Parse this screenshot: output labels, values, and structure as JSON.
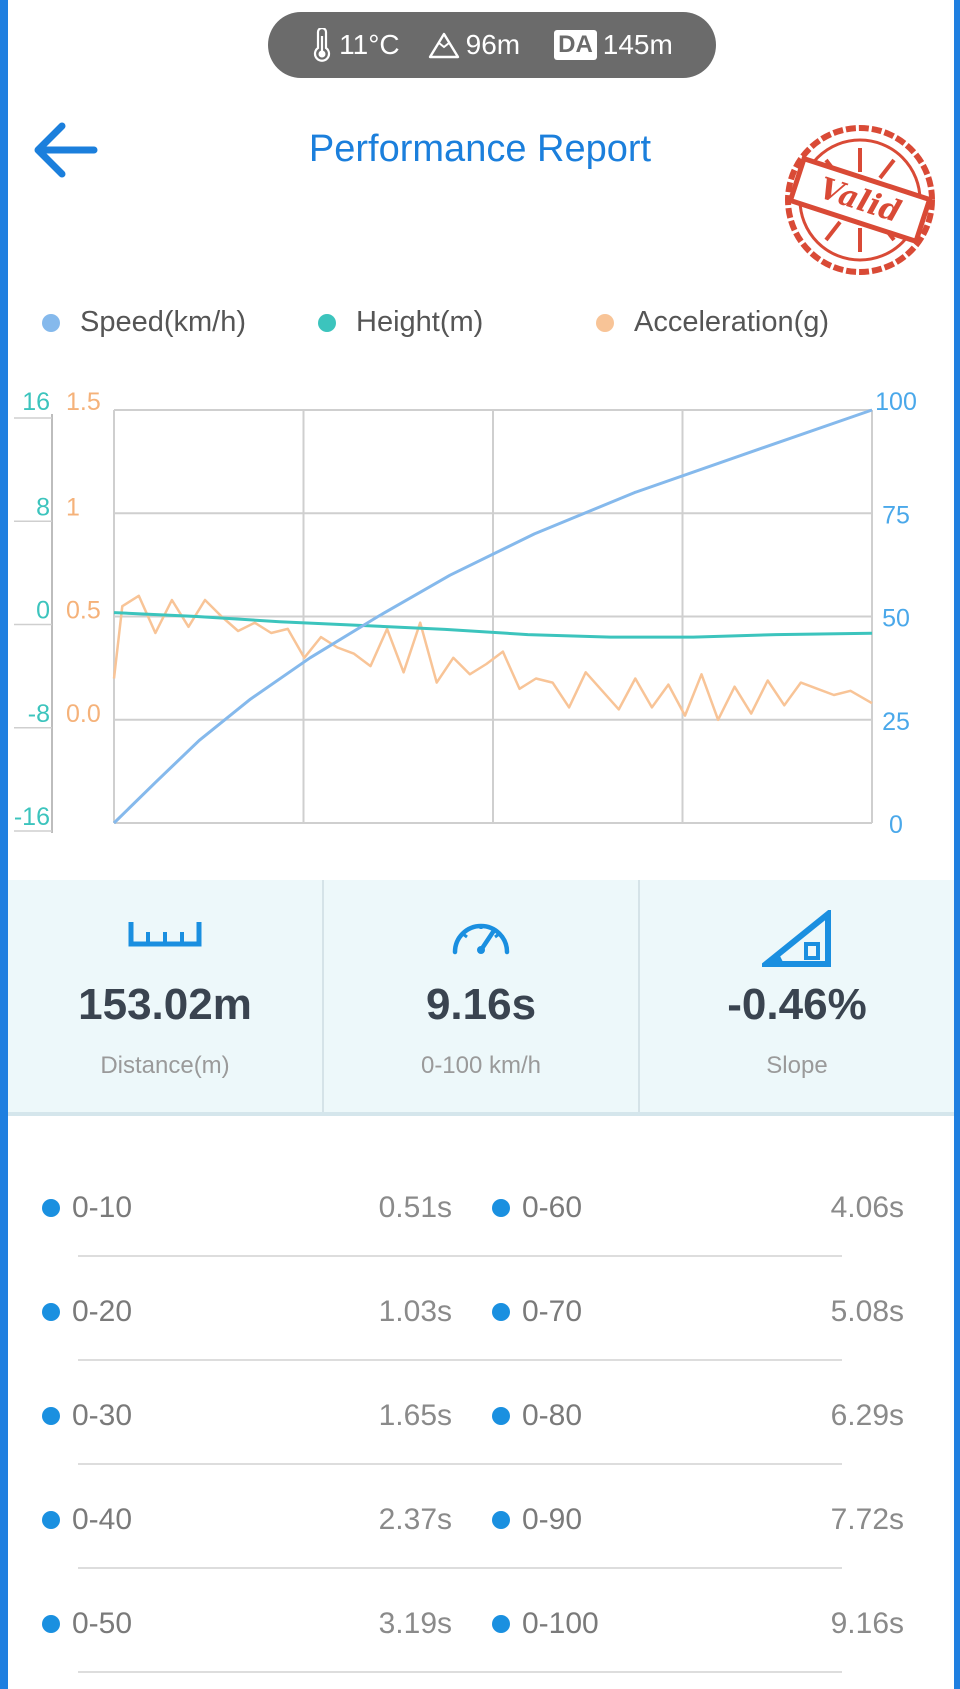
{
  "status": {
    "temperature": "11°C",
    "altitude": "96m",
    "da_label": "DA",
    "density_altitude": "145m"
  },
  "header": {
    "title": "Performance Report",
    "stamp_text": "Valid",
    "back_icon": "back-arrow-icon"
  },
  "chart_data": {
    "type": "line",
    "legend": [
      "Speed(km/h)",
      "Height(m)",
      "Acceleration(g)"
    ],
    "colors": {
      "speed": "#85b9ec",
      "height": "#3cc4bd",
      "acceleration": "#f8c497"
    },
    "x_range": [
      0,
      9.16
    ],
    "axes": {
      "height_ticks": [
        "16",
        "8",
        "0",
        "-8",
        "-16"
      ],
      "height_range": [
        -16,
        16
      ],
      "accel_ticks": [
        "1.5",
        "1",
        "0.5",
        "0.0"
      ],
      "accel_range": [
        -0.5,
        1.5
      ],
      "speed_ticks": [
        "100",
        "75",
        "50",
        "25",
        "0"
      ],
      "speed_range": [
        0,
        100
      ]
    },
    "series": [
      {
        "name": "Speed(km/h)",
        "x": [
          0,
          0.51,
          1.03,
          1.65,
          2.37,
          3.19,
          4.06,
          5.08,
          6.29,
          7.72,
          9.16
        ],
        "values": [
          0,
          10,
          20,
          30,
          40,
          50,
          60,
          70,
          80,
          90,
          100
        ]
      },
      {
        "name": "Height(m)",
        "x": [
          0,
          1,
          2,
          3,
          4,
          5,
          6,
          7,
          8,
          9.16
        ],
        "values": [
          0.3,
          0.0,
          -0.4,
          -0.7,
          -1.0,
          -1.4,
          -1.6,
          -1.6,
          -1.4,
          -1.3
        ]
      },
      {
        "name": "Acceleration(g)",
        "x": [
          0,
          0.1,
          0.3,
          0.5,
          0.7,
          0.9,
          1.1,
          1.3,
          1.5,
          1.7,
          1.9,
          2.1,
          2.3,
          2.5,
          2.7,
          2.9,
          3.1,
          3.3,
          3.5,
          3.7,
          3.9,
          4.1,
          4.3,
          4.5,
          4.7,
          4.9,
          5.1,
          5.3,
          5.5,
          5.7,
          5.9,
          6.1,
          6.3,
          6.5,
          6.7,
          6.9,
          7.1,
          7.3,
          7.5,
          7.7,
          7.9,
          8.1,
          8.3,
          8.5,
          8.7,
          8.9,
          9.16
        ],
        "values": [
          0.2,
          0.55,
          0.6,
          0.42,
          0.58,
          0.45,
          0.58,
          0.5,
          0.43,
          0.47,
          0.42,
          0.44,
          0.3,
          0.4,
          0.35,
          0.32,
          0.26,
          0.44,
          0.23,
          0.47,
          0.18,
          0.3,
          0.22,
          0.27,
          0.33,
          0.15,
          0.2,
          0.18,
          0.06,
          0.23,
          0.14,
          0.05,
          0.2,
          0.06,
          0.17,
          0.02,
          0.22,
          0.0,
          0.16,
          0.03,
          0.19,
          0.07,
          0.18,
          0.15,
          0.12,
          0.14,
          0.08
        ]
      }
    ]
  },
  "stats": [
    {
      "icon": "ruler-icon",
      "value": "153.02m",
      "label": "Distance(m)"
    },
    {
      "icon": "speedometer-icon",
      "value": "9.16s",
      "label": "0-100 km/h"
    },
    {
      "icon": "slope-icon",
      "value": "-0.46%",
      "label": "Slope"
    }
  ],
  "splits": [
    {
      "left_label": "0-10",
      "left_time": "0.51s",
      "right_label": "0-60",
      "right_time": "4.06s"
    },
    {
      "left_label": "0-20",
      "left_time": "1.03s",
      "right_label": "0-70",
      "right_time": "5.08s"
    },
    {
      "left_label": "0-30",
      "left_time": "1.65s",
      "right_label": "0-80",
      "right_time": "6.29s"
    },
    {
      "left_label": "0-40",
      "left_time": "2.37s",
      "right_label": "0-90",
      "right_time": "7.72s"
    },
    {
      "left_label": "0-50",
      "left_time": "3.19s",
      "right_label": "0-100",
      "right_time": "9.16s"
    }
  ]
}
